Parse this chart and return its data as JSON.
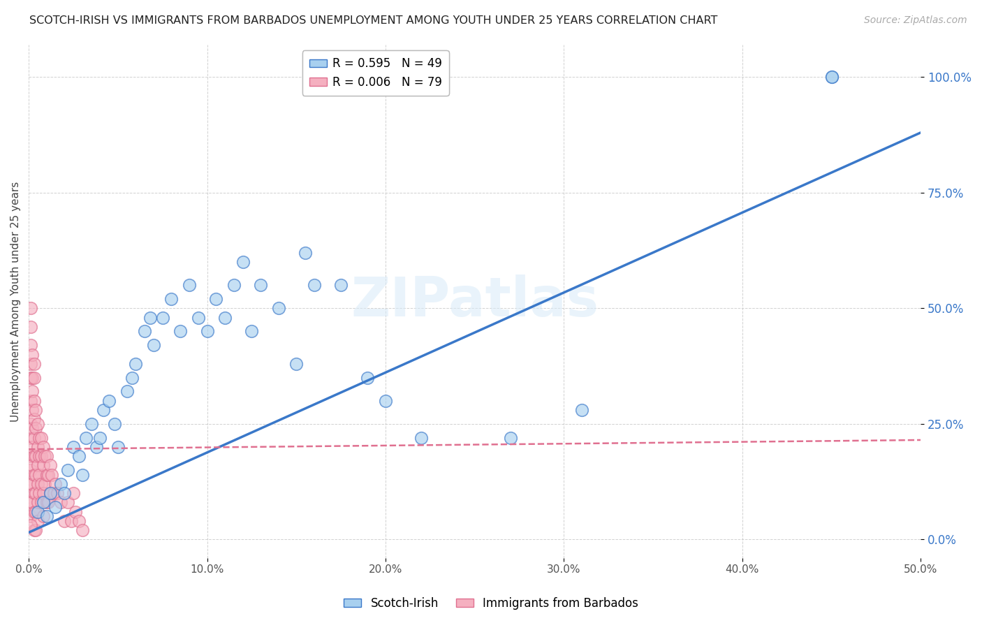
{
  "title": "SCOTCH-IRISH VS IMMIGRANTS FROM BARBADOS UNEMPLOYMENT AMONG YOUTH UNDER 25 YEARS CORRELATION CHART",
  "source": "Source: ZipAtlas.com",
  "ylabel": "Unemployment Among Youth under 25 years",
  "legend_label1": "Scotch-Irish",
  "legend_label2": "Immigrants from Barbados",
  "R1": 0.595,
  "N1": 49,
  "R2": 0.006,
  "N2": 79,
  "xmin": 0.0,
  "xmax": 0.5,
  "ymin": -0.04,
  "ymax": 1.07,
  "xticks": [
    0.0,
    0.1,
    0.2,
    0.3,
    0.4,
    0.5
  ],
  "xtick_labels": [
    "0.0%",
    "10.0%",
    "20.0%",
    "30.0%",
    "40.0%",
    "50.0%"
  ],
  "yticks": [
    0.0,
    0.25,
    0.5,
    0.75,
    1.0
  ],
  "ytick_labels": [
    "0.0%",
    "25.0%",
    "50.0%",
    "75.0%",
    "100.0%"
  ],
  "color_blue": "#a8d0ef",
  "color_blue_line": "#3a78c9",
  "color_pink": "#f5b0c0",
  "color_pink_line": "#e07090",
  "watermark": "ZIPatlas",
  "blue_line_x0": 0.0,
  "blue_line_y0": 0.015,
  "blue_line_x1": 0.5,
  "blue_line_y1": 0.88,
  "pink_line_x0": 0.0,
  "pink_line_y0": 0.195,
  "pink_line_x1": 0.5,
  "pink_line_y1": 0.215,
  "blue_scatter_x": [
    0.005,
    0.008,
    0.01,
    0.012,
    0.015,
    0.018,
    0.02,
    0.022,
    0.025,
    0.028,
    0.03,
    0.032,
    0.035,
    0.038,
    0.04,
    0.042,
    0.045,
    0.048,
    0.05,
    0.055,
    0.058,
    0.06,
    0.065,
    0.068,
    0.07,
    0.075,
    0.08,
    0.085,
    0.09,
    0.095,
    0.1,
    0.105,
    0.11,
    0.115,
    0.12,
    0.125,
    0.13,
    0.14,
    0.15,
    0.155,
    0.16,
    0.175,
    0.19,
    0.2,
    0.22,
    0.27,
    0.31,
    0.45,
    0.45
  ],
  "blue_scatter_y": [
    0.06,
    0.08,
    0.05,
    0.1,
    0.07,
    0.12,
    0.1,
    0.15,
    0.2,
    0.18,
    0.14,
    0.22,
    0.25,
    0.2,
    0.22,
    0.28,
    0.3,
    0.25,
    0.2,
    0.32,
    0.35,
    0.38,
    0.45,
    0.48,
    0.42,
    0.48,
    0.52,
    0.45,
    0.55,
    0.48,
    0.45,
    0.52,
    0.48,
    0.55,
    0.6,
    0.45,
    0.55,
    0.5,
    0.38,
    0.62,
    0.55,
    0.55,
    0.35,
    0.3,
    0.22,
    0.22,
    0.28,
    1.0,
    1.0
  ],
  "pink_scatter_x": [
    0.001,
    0.001,
    0.001,
    0.001,
    0.001,
    0.001,
    0.001,
    0.001,
    0.001,
    0.001,
    0.001,
    0.002,
    0.002,
    0.002,
    0.002,
    0.002,
    0.002,
    0.002,
    0.002,
    0.002,
    0.003,
    0.003,
    0.003,
    0.003,
    0.003,
    0.003,
    0.003,
    0.003,
    0.003,
    0.003,
    0.004,
    0.004,
    0.004,
    0.004,
    0.004,
    0.004,
    0.004,
    0.005,
    0.005,
    0.005,
    0.005,
    0.005,
    0.005,
    0.006,
    0.006,
    0.006,
    0.006,
    0.007,
    0.007,
    0.007,
    0.007,
    0.008,
    0.008,
    0.008,
    0.008,
    0.009,
    0.009,
    0.01,
    0.01,
    0.01,
    0.011,
    0.011,
    0.012,
    0.012,
    0.013,
    0.014,
    0.015,
    0.016,
    0.018,
    0.02,
    0.022,
    0.024,
    0.025,
    0.026,
    0.028,
    0.03,
    0.001,
    0.001,
    0.001
  ],
  "pink_scatter_y": [
    0.35,
    0.3,
    0.25,
    0.22,
    0.18,
    0.15,
    0.38,
    0.42,
    0.12,
    0.08,
    0.05,
    0.32,
    0.28,
    0.24,
    0.2,
    0.16,
    0.12,
    0.08,
    0.35,
    0.4,
    0.3,
    0.26,
    0.22,
    0.18,
    0.14,
    0.1,
    0.06,
    0.02,
    0.35,
    0.38,
    0.28,
    0.24,
    0.18,
    0.14,
    0.1,
    0.06,
    0.02,
    0.25,
    0.2,
    0.16,
    0.12,
    0.08,
    0.04,
    0.22,
    0.18,
    0.14,
    0.1,
    0.22,
    0.18,
    0.12,
    0.08,
    0.2,
    0.16,
    0.1,
    0.05,
    0.18,
    0.12,
    0.18,
    0.14,
    0.08,
    0.14,
    0.08,
    0.16,
    0.1,
    0.14,
    0.1,
    0.12,
    0.1,
    0.08,
    0.04,
    0.08,
    0.04,
    0.1,
    0.06,
    0.04,
    0.02,
    0.46,
    0.5,
    0.03
  ]
}
